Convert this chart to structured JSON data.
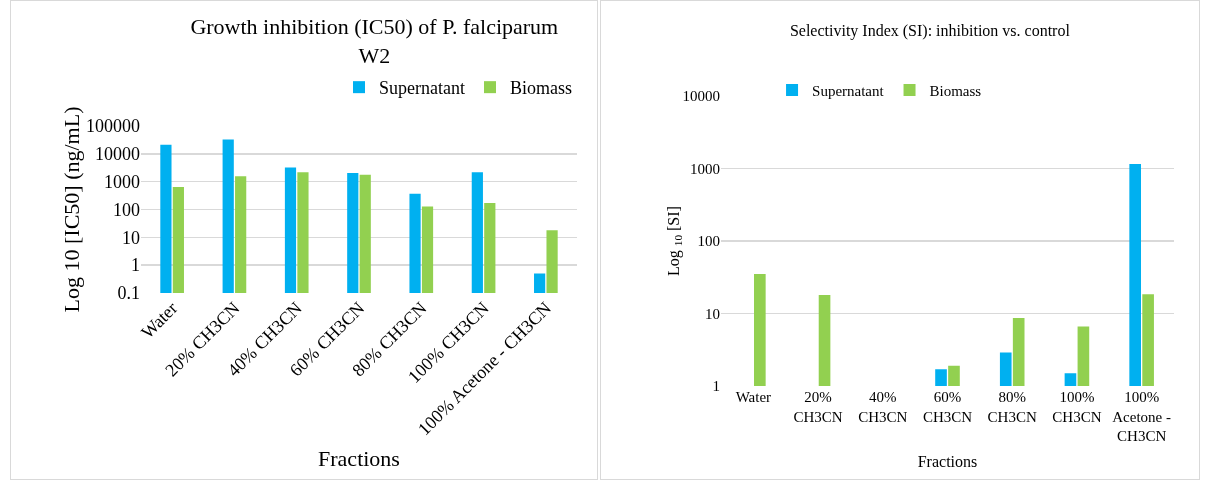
{
  "chart_data": [
    {
      "type": "bar",
      "title": "Growth inhibition (IC50) of P. falciparum\nW2",
      "xlabel": "Fractions",
      "ylabel": "Log 10 [IC50] (ng/mL)",
      "categories": [
        "Water",
        "20% CH3CN",
        "40% CH3CN",
        "60% CH3CN",
        "80% CH3CN",
        "100% CH3CN",
        "100% Acetone - CH3CN"
      ],
      "series": [
        {
          "name": "Supernatant",
          "color": "#00b0f0",
          "values": [
            21000,
            33000,
            3200,
            2050,
            370,
            2200,
            0.5
          ]
        },
        {
          "name": "Biomass",
          "color": "#92d050",
          "values": [
            640,
            1560,
            2200,
            1770,
            128,
            170,
            18
          ]
        }
      ],
      "log": true,
      "ylim": [
        0.1,
        100000
      ],
      "yticks": [
        0.1,
        1,
        10,
        100,
        1000,
        10000,
        100000
      ],
      "grid": "y",
      "legend": "top right"
    },
    {
      "type": "bar",
      "title": "Selectivity Index (SI): inhibition vs. control",
      "xlabel": "Fractions",
      "ylabel": "Log $_{10}$ [SI]",
      "categories": [
        "Water",
        "20%\nCH3CN",
        "40%\nCH3CN",
        "60%\nCH3CN",
        "80%\nCH3CN",
        "100%\nCH3CN",
        "100%\nAcetone -\nCH3CN"
      ],
      "series": [
        {
          "name": "Supernatant",
          "color": "#00b0f0",
          "values": [
            null,
            null,
            null,
            1.7,
            2.9,
            1.5,
            1150
          ]
        },
        {
          "name": "Biomass",
          "color": "#92d050",
          "values": [
            35,
            18,
            null,
            1.9,
            8.7,
            6.6,
            18.5
          ]
        }
      ],
      "log": true,
      "ylim": [
        1,
        10000
      ],
      "yticks": [
        1,
        10,
        100,
        1000,
        10000
      ],
      "grid": "y",
      "legend": "top"
    }
  ]
}
